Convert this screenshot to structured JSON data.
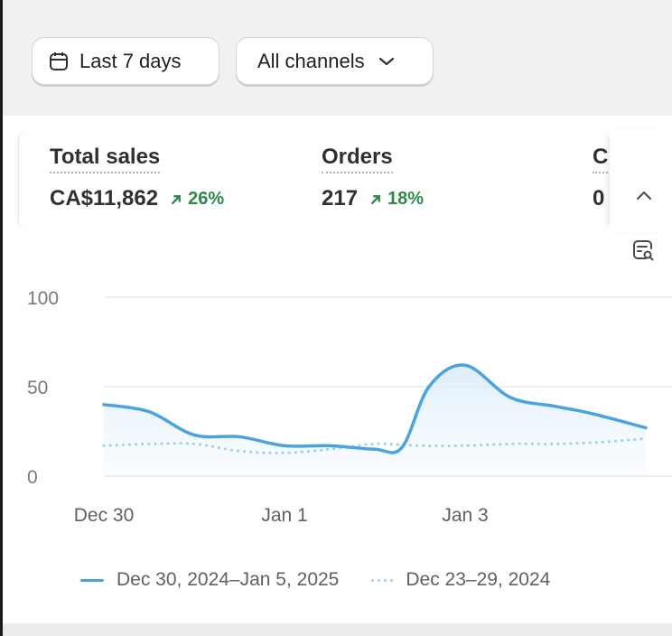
{
  "filters": {
    "date_range": {
      "label": "Last 7 days",
      "icon": "calendar-icon"
    },
    "channel": {
      "label": "All channels",
      "icon": "chevron-down-icon"
    }
  },
  "metrics": [
    {
      "label": "Total sales",
      "value": "CA$11,862",
      "change": "26%",
      "trend": "up"
    },
    {
      "label": "Orders",
      "value": "217",
      "change": "18%",
      "trend": "up"
    },
    {
      "label": "C",
      "value": "0"
    }
  ],
  "icons": {
    "collapse": "chevron-up-icon",
    "chart_settings": "chart-settings-icon",
    "change": "arrow-up-right-icon"
  },
  "colors": {
    "current_series": "#4aa3df",
    "previous_series": "#9ccfee",
    "positive_change": "#2f8a4a",
    "card_background": "#ffffff",
    "page_background": "#f1f1f1"
  },
  "chart_data": {
    "type": "area",
    "ylim": [
      0,
      100
    ],
    "yticks": [
      "0",
      "50",
      "100"
    ],
    "x_tick_labels": [
      "Dec 30",
      "Jan 1",
      "Jan 3"
    ],
    "grid": true,
    "legend_position": "bottom",
    "series": [
      {
        "name": "Dec 30, 2024–Jan 5, 2025",
        "style": "solid-filled",
        "points": [
          [
            "Dec 30",
            40
          ],
          [
            "Dec 30.5",
            36
          ],
          [
            "Dec 31",
            23
          ],
          [
            "Dec 31.5",
            22
          ],
          [
            "Jan 1",
            17
          ],
          [
            "Jan 1.5",
            17
          ],
          [
            "Jan 2",
            15
          ],
          [
            "Jan 2.3",
            16
          ],
          [
            "Jan 2.6",
            50
          ],
          [
            "Jan 3",
            62
          ],
          [
            "Jan 3.5",
            44
          ],
          [
            "Jan 4",
            39
          ],
          [
            "Jan 4.4",
            35
          ],
          [
            "Jan 5",
            27
          ]
        ]
      },
      {
        "name": "Dec 23–29, 2024",
        "style": "dotted",
        "points": [
          [
            "Dec 30",
            17
          ],
          [
            "Dec 30.5",
            18
          ],
          [
            "Dec 31",
            18
          ],
          [
            "Dec 31.5",
            14
          ],
          [
            "Jan 1",
            13
          ],
          [
            "Jan 1.5",
            15
          ],
          [
            "Jan 2",
            18
          ],
          [
            "Jan 2.5",
            17
          ],
          [
            "Jan 3",
            17
          ],
          [
            "Jan 3.5",
            18
          ],
          [
            "Jan 4",
            18
          ],
          [
            "Jan 4.5",
            19
          ],
          [
            "Jan 5",
            21
          ]
        ]
      }
    ]
  }
}
